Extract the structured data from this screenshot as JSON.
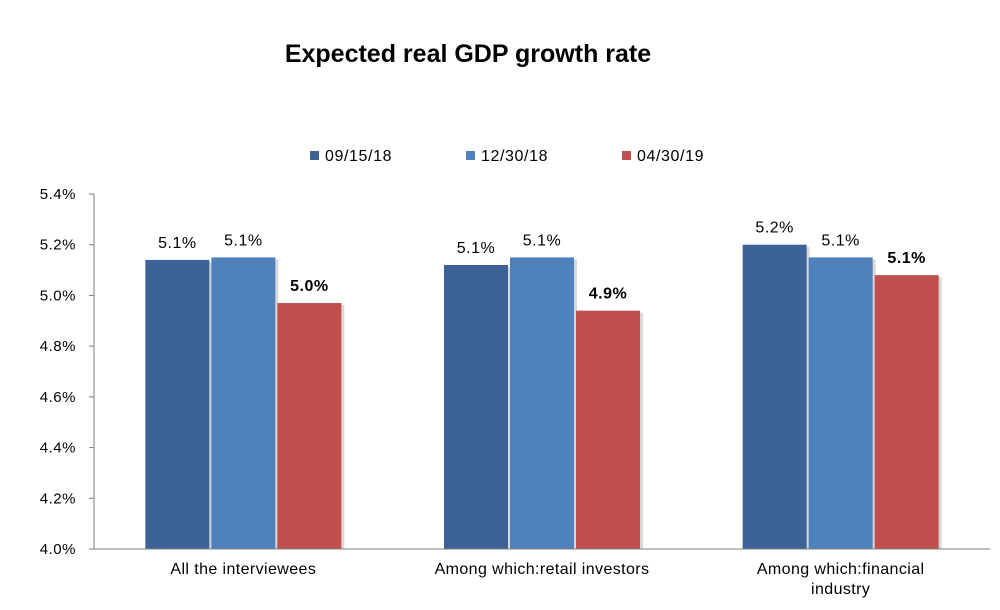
{
  "chart_data": {
    "type": "bar",
    "title": "Expected real GDP growth rate",
    "xlabel": "",
    "ylabel": "",
    "ylim": [
      4.0,
      5.4
    ],
    "ytick_values": [
      4.0,
      4.2,
      4.4,
      4.6,
      4.8,
      5.0,
      5.2,
      5.4
    ],
    "yticks": [
      "4.0%",
      "4.2%",
      "4.4%",
      "4.6%",
      "4.8%",
      "5.0%",
      "5.2%",
      "5.4%"
    ],
    "categories": [
      [
        "All the interviewees"
      ],
      [
        "Among which:retail investors"
      ],
      [
        "Among which:financial",
        "industry"
      ]
    ],
    "legend_position": "top-center",
    "grid": false,
    "series": [
      {
        "name": "09/15/18",
        "color": "#3d6396",
        "values": [
          5.14,
          5.12,
          5.2
        ],
        "labels": [
          "5.1%",
          "5.1%",
          "5.2%"
        ],
        "label_bold": false
      },
      {
        "name": "12/30/18",
        "color": "#4f81bd",
        "values": [
          5.15,
          5.15,
          5.15
        ],
        "labels": [
          "5.1%",
          "5.1%",
          "5.1%"
        ],
        "label_bold": false
      },
      {
        "name": "04/30/19",
        "color": "#c0504d",
        "values": [
          4.97,
          4.94,
          5.08
        ],
        "labels": [
          "5.0%",
          "4.9%",
          "5.1%"
        ],
        "label_bold": true
      }
    ]
  }
}
